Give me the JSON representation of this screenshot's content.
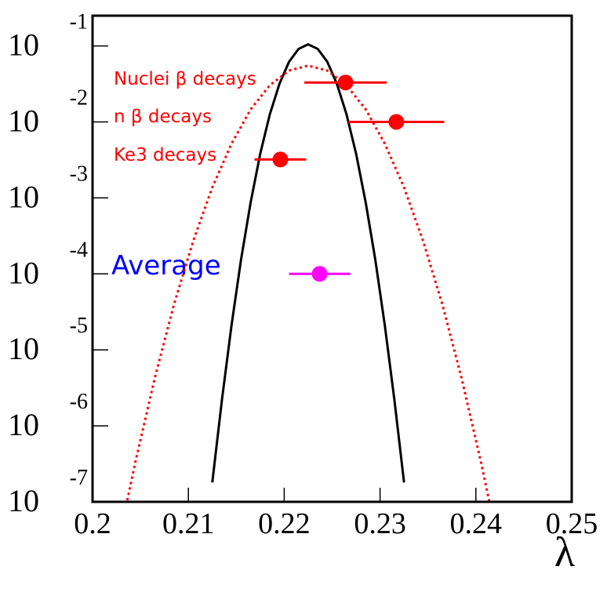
{
  "chart_data": {
    "type": "line",
    "xlabel": "λ",
    "xlim": [
      0.2,
      0.25
    ],
    "ylim": [
      1e-07,
      0.25
    ],
    "ylog": true,
    "xticks": [
      0.2,
      0.21,
      0.22,
      0.23,
      0.24,
      0.25
    ],
    "yticks": [
      {
        "value": 1e-07,
        "label": "10",
        "exponent": "-7"
      },
      {
        "value": 1e-06,
        "label": "10",
        "exponent": "-6"
      },
      {
        "value": 1e-05,
        "label": "10",
        "exponent": "-5"
      },
      {
        "value": 0.0001,
        "label": "10",
        "exponent": "-4"
      },
      {
        "value": 0.001,
        "label": "10",
        "exponent": "-3"
      },
      {
        "value": 0.01,
        "label": "10",
        "exponent": "-2"
      },
      {
        "value": 0.1,
        "label": "10",
        "exponent": "-1"
      }
    ],
    "curves": [
      {
        "color": "#000000",
        "style": "solid",
        "x": [
          0.2125,
          0.2135,
          0.2145,
          0.2155,
          0.2165,
          0.2175,
          0.2185,
          0.2195,
          0.2205,
          0.2215,
          0.2225,
          0.2235,
          0.2245,
          0.2255,
          0.2265,
          0.2275,
          0.2285,
          0.2295,
          0.2305,
          0.2315,
          0.2325
        ],
        "values": [
          1.8e-07,
          2.2e-06,
          2.1e-05,
          0.000155,
          0.00087,
          0.0038,
          0.0126,
          0.0316,
          0.0617,
          0.0912,
          0.105,
          0.0912,
          0.0617,
          0.0316,
          0.0126,
          0.0038,
          0.00087,
          0.000155,
          2.1e-05,
          2.2e-06,
          1.8e-07
        ]
      },
      {
        "color": "#ff0000",
        "style": "dotted",
        "x": [
          0.2035,
          0.2045,
          0.2065,
          0.2085,
          0.2105,
          0.2125,
          0.2145,
          0.2165,
          0.2185,
          0.2205,
          0.2225,
          0.2245,
          0.2265,
          0.2285,
          0.2305,
          0.2325,
          0.2345,
          0.2365,
          0.2385,
          0.2405,
          0.2415
        ],
        "values": [
          8.9e-08,
          3.47e-07,
          4.27e-06,
          3.98e-05,
          0.000269,
          0.00137,
          0.00516,
          0.0146,
          0.0304,
          0.0474,
          0.055,
          0.0474,
          0.0304,
          0.0146,
          0.00516,
          0.00137,
          0.000269,
          3.98e-05,
          4.27e-06,
          3.47e-07,
          8.9e-08
        ]
      }
    ],
    "measurements": [
      {
        "label": "Nuclei β decays",
        "color": "#ff0000",
        "x": 0.2264,
        "xerr": 0.0043,
        "y": 0.033
      },
      {
        "label": "n β decays",
        "color": "#ff0000",
        "x": 0.2317,
        "xerr": 0.005,
        "y": 0.01
      },
      {
        "label": "Ke3 decays",
        "color": "#ff0000",
        "x": 0.2196,
        "xerr": 0.0027,
        "y": 0.0032
      },
      {
        "label": "Average",
        "color": "#ff00ff",
        "label_color": "#0000ff",
        "x": 0.2237,
        "xerr": 0.0032,
        "y": 0.0001
      }
    ]
  }
}
